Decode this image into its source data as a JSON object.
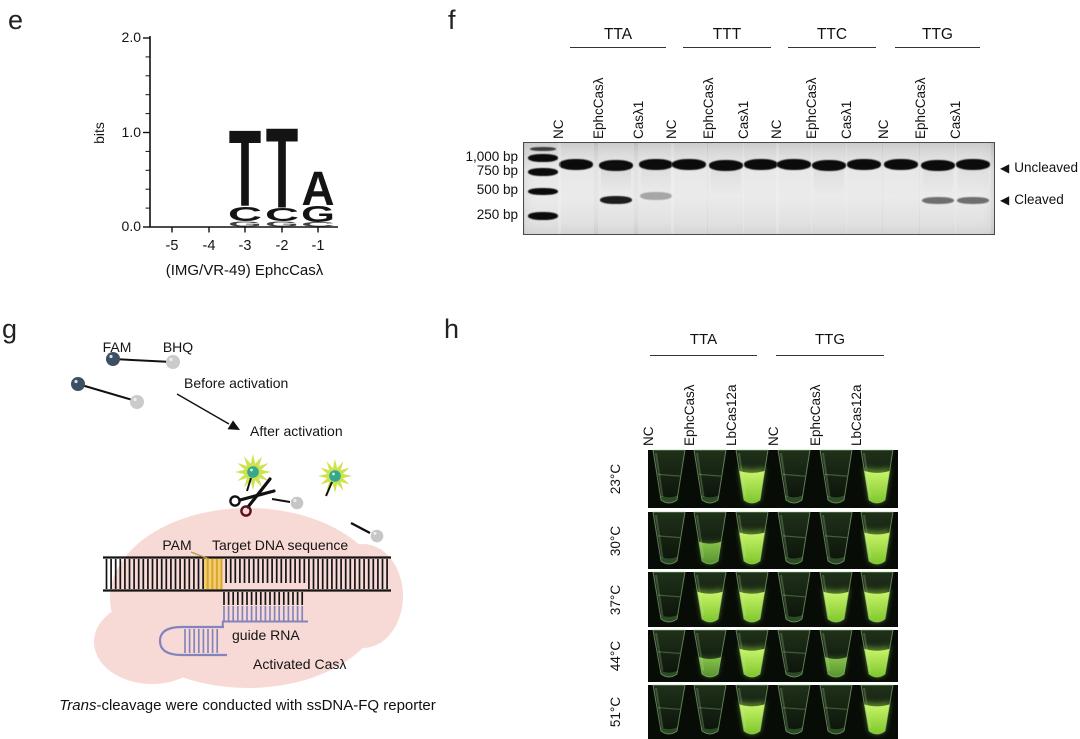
{
  "panel_e": {
    "label": "e",
    "chart_data": {
      "type": "sequence_logo",
      "ylabel": "bits",
      "ylim": [
        0,
        2
      ],
      "ytick_labels": [
        "2.0",
        "1.0",
        "0.0"
      ],
      "xtick_labels": [
        "-5",
        "-4",
        "-3",
        "-2",
        "-1"
      ],
      "caption": "(IMG/VR-49) EphcCasλ",
      "base_colors": {
        "T": "#aa1f26",
        "C": "#20308c",
        "G": "#c29b2c",
        "A": "#1e7b35"
      },
      "stacks": [
        {
          "position": "-5",
          "letters": []
        },
        {
          "position": "-4",
          "letters": []
        },
        {
          "position": "-3",
          "letters": [
            {
              "base": "T",
              "bits": 0.84
            },
            {
              "base": "C",
              "bits": 0.16
            },
            {
              "base": "G",
              "bits": 0.06
            }
          ]
        },
        {
          "position": "-2",
          "letters": [
            {
              "base": "T",
              "bits": 0.88
            },
            {
              "base": "C",
              "bits": 0.14
            },
            {
              "base": "G",
              "bits": 0.06
            }
          ]
        },
        {
          "position": "-1",
          "letters": [
            {
              "base": "A",
              "bits": 0.37
            },
            {
              "base": "G",
              "bits": 0.18
            },
            {
              "base": "C",
              "bits": 0.05
            }
          ]
        }
      ]
    }
  },
  "panel_f": {
    "label": "f",
    "ladder_labels": [
      "1,000 bp",
      "750 bp",
      "500 bp",
      "250 bp"
    ],
    "groups": [
      {
        "name": "TTA",
        "lanes": [
          {
            "label": "NC",
            "cleaved": "none",
            "smear": false
          },
          {
            "label": "EphcCasλ",
            "cleaved": "strong",
            "smear": true
          },
          {
            "label": "Casλ1",
            "cleaved": "faint",
            "smear": true
          }
        ]
      },
      {
        "name": "TTT",
        "lanes": [
          {
            "label": "NC",
            "cleaved": "none",
            "smear": false
          },
          {
            "label": "EphcCasλ",
            "cleaved": "none",
            "smear": true
          },
          {
            "label": "Casλ1",
            "cleaved": "none",
            "smear": false
          }
        ]
      },
      {
        "name": "TTC",
        "lanes": [
          {
            "label": "NC",
            "cleaved": "none",
            "smear": false
          },
          {
            "label": "EphcCasλ",
            "cleaved": "none",
            "smear": true
          },
          {
            "label": "Casλ1",
            "cleaved": "none",
            "smear": false
          }
        ]
      },
      {
        "name": "TTG",
        "lanes": [
          {
            "label": "NC",
            "cleaved": "none",
            "smear": false
          },
          {
            "label": "EphcCasλ",
            "cleaved": "medium",
            "smear": true
          },
          {
            "label": "Casλ1",
            "cleaved": "medium",
            "smear": true
          }
        ]
      }
    ],
    "annotations": {
      "arrow": "◀",
      "uncleaved": "Uncleaved",
      "cleaved": "Cleaved"
    }
  },
  "panel_g": {
    "label": "g",
    "labels": {
      "fam": "FAM",
      "bhq": "BHQ",
      "before": "Before activation",
      "after": "After activation",
      "pam": "PAM",
      "target": "Target DNA sequence",
      "guide": "guide RNA",
      "activated": "Activated Casλ",
      "caption_italic": "Trans",
      "caption_rest": "-cleavage were conducted with ssDNA-FQ reporter"
    }
  },
  "panel_h": {
    "label": "h",
    "groups": [
      {
        "name": "TTA",
        "lanes": [
          "NC",
          "EphcCasλ",
          "LbCas12a"
        ]
      },
      {
        "name": "TTG",
        "lanes": [
          "NC",
          "EphcCasλ",
          "LbCas12a"
        ]
      }
    ],
    "rows": [
      {
        "temp": "23°C",
        "tubes": [
          "dim",
          "dim",
          "bright",
          "dim",
          "dim",
          "bright"
        ]
      },
      {
        "temp": "30°C",
        "tubes": [
          "dim",
          "medium",
          "bright",
          "dim",
          "dim",
          "bright"
        ]
      },
      {
        "temp": "37°C",
        "tubes": [
          "dim",
          "bright",
          "bright",
          "dim",
          "bright",
          "bright"
        ]
      },
      {
        "temp": "44°C",
        "tubes": [
          "dim",
          "medium",
          "bright",
          "dim",
          "medium",
          "bright"
        ]
      },
      {
        "temp": "51°C",
        "tubes": [
          "dim",
          "dim",
          "bright",
          "dim",
          "dim",
          "bright"
        ]
      }
    ],
    "colors": {
      "bright": "#93d937",
      "medium": "#6fae36",
      "dim": "#2c4a26",
      "background": "#070c06"
    }
  }
}
